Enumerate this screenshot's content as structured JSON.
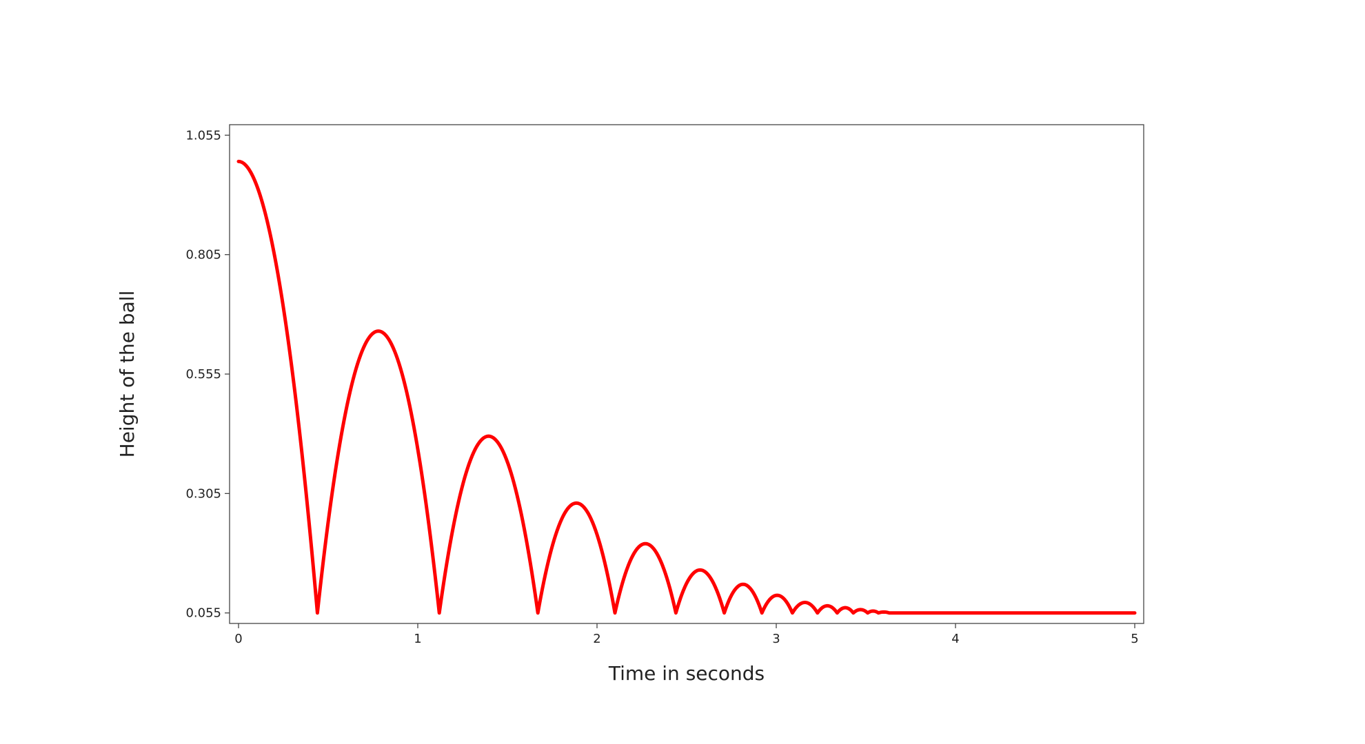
{
  "chart_data": {
    "type": "line",
    "title": "",
    "xlabel": "Time in seconds",
    "ylabel": "Height of the ball",
    "xlim": [
      -0.05,
      5.05
    ],
    "ylim": [
      0.033,
      1.077
    ],
    "xticks": [
      0,
      1,
      2,
      3,
      4,
      5
    ],
    "xtick_labels": [
      "0",
      "1",
      "2",
      "3",
      "4",
      "5"
    ],
    "yticks": [
      0.055,
      0.305,
      0.555,
      0.805,
      1.055
    ],
    "ytick_labels": [
      "0.055",
      "0.305",
      "0.555",
      "0.805",
      "1.055"
    ],
    "grid": false,
    "legend": false,
    "line_color": "#ff0000",
    "series": [
      {
        "points": [
          [
            0,
            1.0
          ],
          [
            0.22,
            0.818
          ],
          [
            0.44,
            0.055
          ],
          [
            0.78,
            0.645
          ],
          [
            1.12,
            0.055
          ],
          [
            1.4,
            0.425
          ],
          [
            1.67,
            0.055
          ],
          [
            1.89,
            0.285
          ],
          [
            2.1,
            0.055
          ],
          [
            2.27,
            0.2
          ],
          [
            2.44,
            0.055
          ],
          [
            2.58,
            0.145
          ],
          [
            2.71,
            0.055
          ],
          [
            2.82,
            0.115
          ],
          [
            2.92,
            0.055
          ],
          [
            3.01,
            0.092
          ],
          [
            3.09,
            0.055
          ],
          [
            3.16,
            0.077
          ],
          [
            3.23,
            0.055
          ],
          [
            3.29,
            0.07
          ],
          [
            3.34,
            0.055
          ],
          [
            3.39,
            0.066
          ],
          [
            3.43,
            0.055
          ],
          [
            3.47,
            0.062
          ],
          [
            3.51,
            0.055
          ],
          [
            3.54,
            0.059
          ],
          [
            3.57,
            0.055
          ],
          [
            3.6,
            0.057
          ],
          [
            3.63,
            0.055
          ],
          [
            5.0,
            0.055
          ]
        ]
      }
    ]
  }
}
